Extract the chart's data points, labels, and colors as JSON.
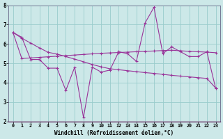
{
  "xlabel": "Windchill (Refroidissement éolien,°C)",
  "x": [
    0,
    1,
    2,
    3,
    4,
    5,
    6,
    7,
    8,
    9,
    10,
    11,
    12,
    13,
    14,
    15,
    16,
    17,
    18,
    19,
    20,
    21,
    22,
    23
  ],
  "y_main": [
    6.6,
    6.35,
    5.2,
    5.2,
    4.75,
    4.75,
    3.6,
    4.8,
    2.2,
    4.8,
    4.55,
    4.65,
    5.6,
    5.5,
    5.1,
    7.1,
    7.9,
    5.5,
    5.85,
    5.6,
    5.35,
    5.35,
    5.6,
    3.7
  ],
  "y_upper": [
    6.6,
    5.25,
    5.28,
    5.31,
    5.34,
    5.37,
    5.4,
    5.43,
    5.46,
    5.49,
    5.52,
    5.54,
    5.56,
    5.58,
    5.6,
    5.62,
    5.64,
    5.66,
    5.68,
    5.65,
    5.62,
    5.6,
    5.58,
    5.55
  ],
  "y_lower": [
    6.6,
    6.3,
    6.05,
    5.8,
    5.57,
    5.48,
    5.35,
    5.22,
    5.08,
    4.94,
    4.82,
    4.72,
    4.67,
    4.62,
    4.57,
    4.52,
    4.48,
    4.43,
    4.38,
    4.34,
    4.3,
    4.26,
    4.22,
    3.72
  ],
  "bg_color": "#cce8e8",
  "line_color": "#993399",
  "grid_color": "#99cccc",
  "ylim": [
    2,
    8
  ],
  "xlim": [
    -0.5,
    23.5
  ],
  "yticks": [
    2,
    3,
    4,
    5,
    6,
    7,
    8
  ]
}
